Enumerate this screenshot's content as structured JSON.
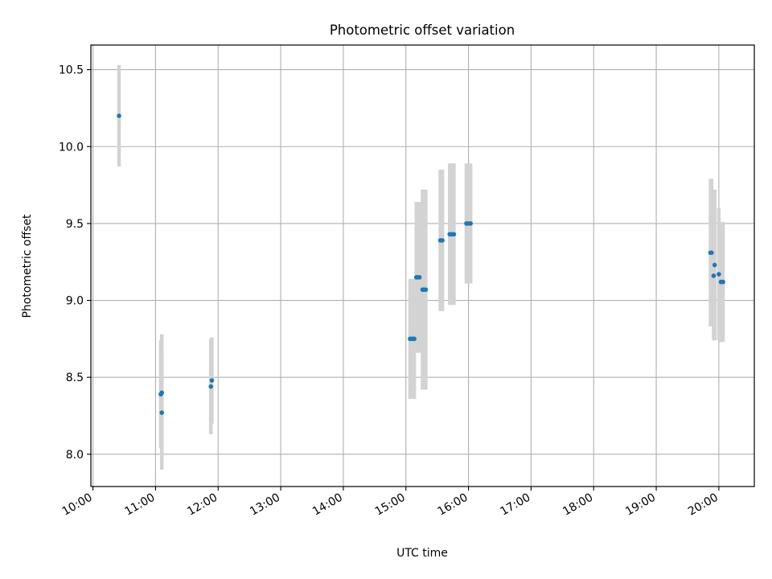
{
  "chart_data": {
    "type": "scatter",
    "title": "Photometric offset variation",
    "xlabel": "UTC time",
    "ylabel": "Photometric offset",
    "x_is_time": true,
    "xlim": [
      "09:58",
      "20:34"
    ],
    "ylim": [
      7.79,
      10.66
    ],
    "xticks": [
      "10:00",
      "11:00",
      "12:00",
      "13:00",
      "14:00",
      "15:00",
      "16:00",
      "17:00",
      "18:00",
      "19:00",
      "20:00"
    ],
    "yticks": [
      8.0,
      8.5,
      9.0,
      9.5,
      10.0,
      10.5
    ],
    "ytick_labels": [
      "8.0",
      "8.5",
      "9.0",
      "9.5",
      "10.0",
      "10.5"
    ],
    "grid": true,
    "point_color": "#1f77b4",
    "errorbar_color": "#d3d3d3",
    "points": [
      {
        "x": "10:25",
        "y": 10.2,
        "err": 0.33
      },
      {
        "x": "11:05",
        "y": 8.39,
        "err": 0.35
      },
      {
        "x": "11:06",
        "y": 8.4,
        "err": 0.38
      },
      {
        "x": "11:06",
        "y": 8.27,
        "err": 0.37
      },
      {
        "x": "11:53",
        "y": 8.44,
        "err": 0.31
      },
      {
        "x": "11:54",
        "y": 8.48,
        "err": 0.28
      },
      {
        "x": "15:04",
        "y": 8.75,
        "err": 0.39
      },
      {
        "x": "15:05",
        "y": 8.75,
        "err": 0.39
      },
      {
        "x": "15:07",
        "y": 8.75,
        "err": 0.39
      },
      {
        "x": "15:08",
        "y": 8.75,
        "err": 0.39
      },
      {
        "x": "15:10",
        "y": 9.15,
        "err": 0.49
      },
      {
        "x": "15:11",
        "y": 9.15,
        "err": 0.49
      },
      {
        "x": "15:13",
        "y": 9.15,
        "err": 0.49
      },
      {
        "x": "15:16",
        "y": 9.07,
        "err": 0.65
      },
      {
        "x": "15:17",
        "y": 9.07,
        "err": 0.65
      },
      {
        "x": "15:19",
        "y": 9.07,
        "err": 0.65
      },
      {
        "x": "15:33",
        "y": 9.39,
        "err": 0.46
      },
      {
        "x": "15:35",
        "y": 9.39,
        "err": 0.46
      },
      {
        "x": "15:42",
        "y": 9.43,
        "err": 0.46
      },
      {
        "x": "15:44",
        "y": 9.43,
        "err": 0.46
      },
      {
        "x": "15:46",
        "y": 9.43,
        "err": 0.46
      },
      {
        "x": "15:58",
        "y": 9.5,
        "err": 0.39
      },
      {
        "x": "16:00",
        "y": 9.5,
        "err": 0.39
      },
      {
        "x": "16:02",
        "y": 9.5,
        "err": 0.39
      },
      {
        "x": "19:52",
        "y": 9.31,
        "err": 0.48
      },
      {
        "x": "19:53",
        "y": 9.31,
        "err": 0.48
      },
      {
        "x": "19:55",
        "y": 9.16,
        "err": 0.42
      },
      {
        "x": "19:56",
        "y": 9.23,
        "err": 0.49
      },
      {
        "x": "20:00",
        "y": 9.17,
        "err": 0.43
      },
      {
        "x": "20:02",
        "y": 9.12,
        "err": 0.39
      },
      {
        "x": "20:04",
        "y": 9.12,
        "err": 0.39
      }
    ]
  }
}
